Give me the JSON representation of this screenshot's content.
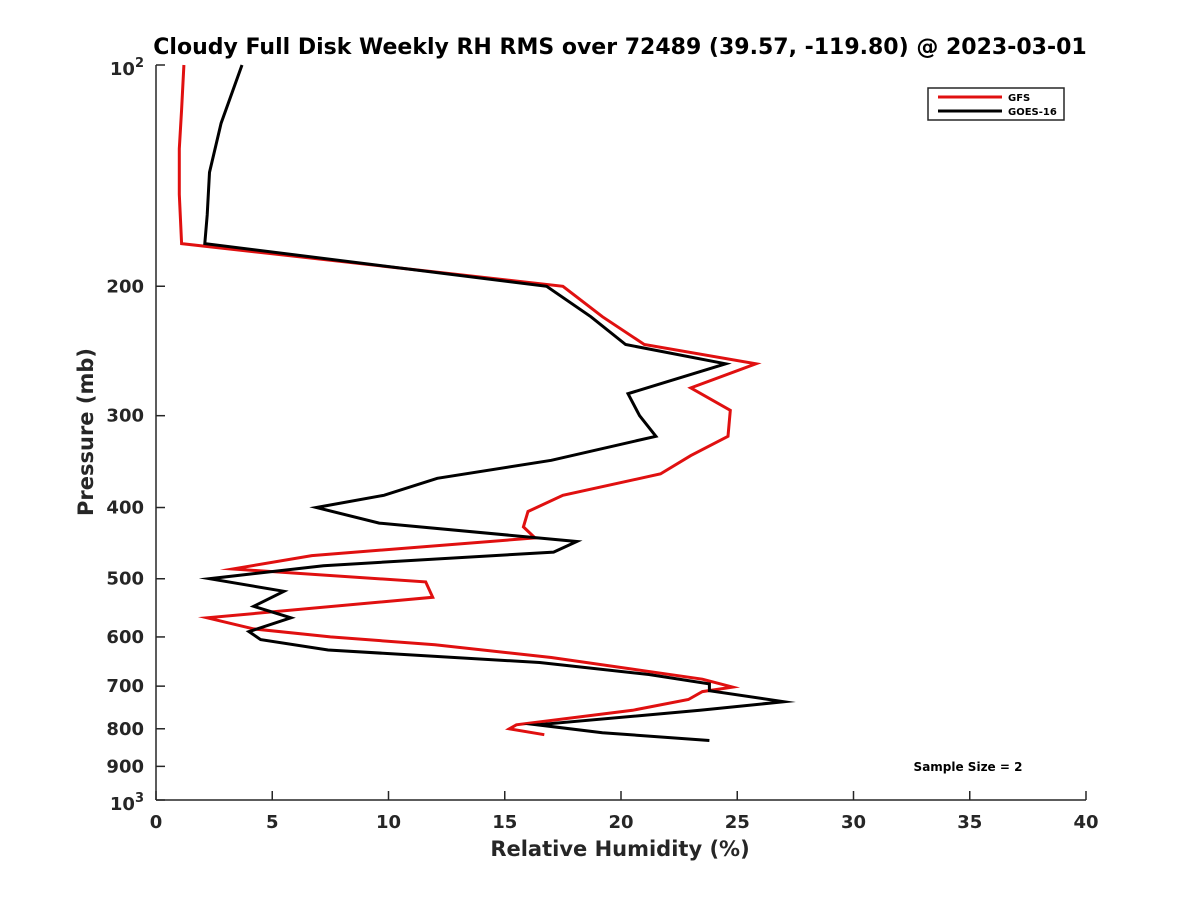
{
  "chart_data": {
    "type": "line",
    "title": "Cloudy Full Disk Weekly RH RMS over 72489 (39.57, -119.80) @ 2023-03-01",
    "xlabel": "Relative Humidity (%)",
    "ylabel": "Pressure (mb)",
    "xlim": [
      0,
      40
    ],
    "ylim": [
      100,
      1000
    ],
    "y_scale": "log",
    "y_reversed": true,
    "x_ticks": [
      0,
      5,
      10,
      15,
      20,
      25,
      30,
      35,
      40
    ],
    "y_ticks": [
      {
        "value": 100,
        "base": "10",
        "exp": "2"
      },
      {
        "value": 200,
        "label": "200"
      },
      {
        "value": 300,
        "label": "300"
      },
      {
        "value": 400,
        "label": "400"
      },
      {
        "value": 500,
        "label": "500"
      },
      {
        "value": 600,
        "label": "600"
      },
      {
        "value": 700,
        "label": "700"
      },
      {
        "value": 800,
        "label": "800"
      },
      {
        "value": 900,
        "label": "900"
      },
      {
        "value": 1000,
        "base": "10",
        "exp": "3"
      }
    ],
    "grid": false,
    "legend_position": "top-right",
    "annotation": "Sample Size = 2",
    "series": [
      {
        "name": "GFS",
        "color": "#e01010",
        "points": [
          [
            1.2,
            100
          ],
          [
            1.1,
            115
          ],
          [
            1.0,
            130
          ],
          [
            1.0,
            150
          ],
          [
            1.1,
            175
          ],
          [
            17.5,
            200
          ],
          [
            19.2,
            220
          ],
          [
            21.0,
            240
          ],
          [
            25.8,
            255
          ],
          [
            23.0,
            275
          ],
          [
            24.7,
            295
          ],
          [
            24.6,
            320
          ],
          [
            23.0,
            340
          ],
          [
            21.7,
            360
          ],
          [
            17.5,
            385
          ],
          [
            16.0,
            405
          ],
          [
            15.8,
            425
          ],
          [
            16.3,
            440
          ],
          [
            6.7,
            465
          ],
          [
            3.3,
            485
          ],
          [
            11.6,
            505
          ],
          [
            11.9,
            530
          ],
          [
            2.2,
            565
          ],
          [
            4.2,
            585
          ],
          [
            7.5,
            600
          ],
          [
            12.0,
            615
          ],
          [
            17.0,
            640
          ],
          [
            23.5,
            685
          ],
          [
            24.8,
            702
          ],
          [
            23.5,
            712
          ],
          [
            22.9,
            730
          ],
          [
            20.5,
            755
          ],
          [
            15.5,
            790
          ],
          [
            15.2,
            800
          ],
          [
            16.7,
            815
          ]
        ]
      },
      {
        "name": "GOES-16",
        "color": "#000000",
        "points": [
          [
            3.7,
            100
          ],
          [
            2.8,
            120
          ],
          [
            2.3,
            140
          ],
          [
            2.2,
            160
          ],
          [
            2.1,
            175
          ],
          [
            16.8,
            200
          ],
          [
            18.7,
            220
          ],
          [
            20.2,
            240
          ],
          [
            24.5,
            255
          ],
          [
            20.3,
            280
          ],
          [
            20.8,
            300
          ],
          [
            21.5,
            320
          ],
          [
            17.0,
            345
          ],
          [
            12.1,
            365
          ],
          [
            9.8,
            385
          ],
          [
            6.9,
            400
          ],
          [
            9.6,
            420
          ],
          [
            18.1,
            445
          ],
          [
            17.1,
            460
          ],
          [
            7.2,
            480
          ],
          [
            2.3,
            500
          ],
          [
            5.5,
            520
          ],
          [
            4.2,
            545
          ],
          [
            5.8,
            565
          ],
          [
            4.0,
            590
          ],
          [
            4.5,
            605
          ],
          [
            7.4,
            625
          ],
          [
            16.5,
            650
          ],
          [
            21.2,
            675
          ],
          [
            23.8,
            695
          ],
          [
            23.8,
            710
          ],
          [
            27.0,
            735
          ],
          [
            23.4,
            755
          ],
          [
            16.4,
            790
          ],
          [
            19.2,
            810
          ],
          [
            23.8,
            830
          ]
        ]
      }
    ]
  }
}
